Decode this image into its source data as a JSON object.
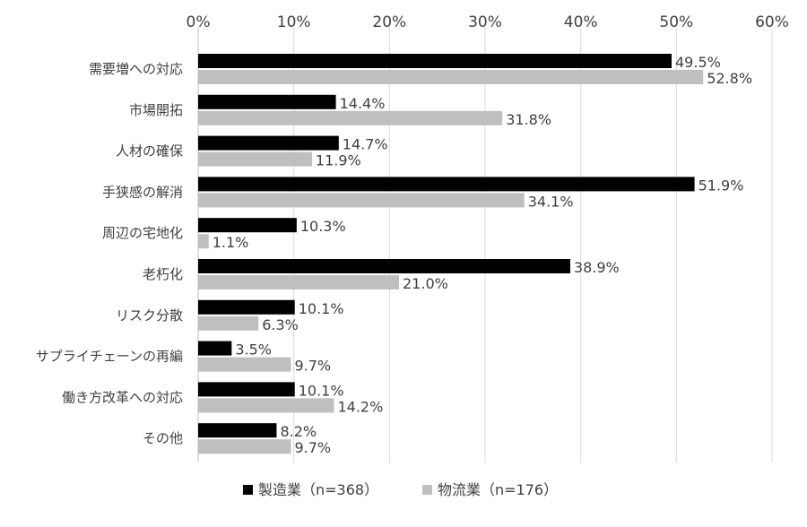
{
  "chart_data": {
    "type": "bar",
    "orientation": "horizontal",
    "title": "",
    "xlabel": "",
    "ylabel": "",
    "xlim": [
      0,
      60
    ],
    "x_ticks": [
      "0%",
      "10%",
      "20%",
      "30%",
      "40%",
      "50%",
      "60%"
    ],
    "x_tick_values": [
      0,
      10,
      20,
      30,
      40,
      50,
      60
    ],
    "axis_position": "top",
    "grid": true,
    "legend_position": "bottom",
    "categories": [
      "需要増への対応",
      "市場開拓",
      "人材の確保",
      "手狭感の解消",
      "周辺の宅地化",
      "老朽化",
      "リスク分散",
      "サプライチェーンの再編",
      "働き方改革への対応",
      "その他"
    ],
    "series": [
      {
        "name": "製造業（n=368）",
        "color": "#000000",
        "values": [
          49.5,
          14.4,
          14.7,
          51.9,
          10.3,
          38.9,
          10.1,
          3.5,
          10.1,
          8.2
        ],
        "labels": [
          "49.5%",
          "14.4%",
          "14.7%",
          "51.9%",
          "10.3%",
          "38.9%",
          "10.1%",
          "3.5%",
          "10.1%",
          "8.2%"
        ]
      },
      {
        "name": "物流業（n=176）",
        "color": "#bfbfbf",
        "values": [
          52.8,
          31.8,
          11.9,
          34.1,
          1.1,
          21.0,
          6.3,
          9.7,
          14.2,
          9.7
        ],
        "labels": [
          "52.8%",
          "31.8%",
          "11.9%",
          "34.1%",
          "1.1%",
          "21.0%",
          "6.3%",
          "9.7%",
          "14.2%",
          "9.7%"
        ]
      }
    ]
  }
}
